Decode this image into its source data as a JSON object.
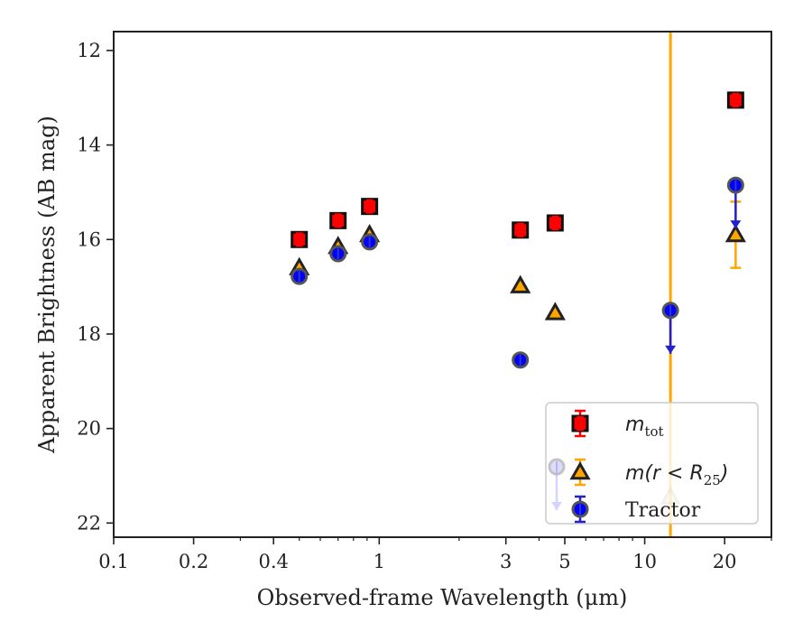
{
  "chart_data": {
    "type": "scatter",
    "xlabel": "Observed-frame Wavelength (μm)",
    "ylabel": "Apparent Brightness (AB mag)",
    "x_scale": "log",
    "xlim": [
      0.1,
      30
    ],
    "ylim": [
      22.3,
      11.6
    ],
    "y_inverted": true,
    "x_tick_labels": [
      "0.1",
      "0.2",
      "0.4",
      "1",
      "3",
      "5",
      "10",
      "20"
    ],
    "y_tick_labels": [
      "12",
      "14",
      "16",
      "18",
      "20",
      "22"
    ],
    "vertical_line": {
      "x": 12.5,
      "color": "#FFA500"
    },
    "legend_position": "lower right",
    "series": [
      {
        "name": "m_tot",
        "label_math": "m",
        "label_sub": "tot",
        "marker": "square",
        "color": "#FF0000",
        "points": [
          {
            "x": 0.5,
            "y": 16.0
          },
          {
            "x": 0.7,
            "y": 15.6
          },
          {
            "x": 0.92,
            "y": 15.3
          },
          {
            "x": 3.4,
            "y": 15.8
          },
          {
            "x": 4.6,
            "y": 15.65
          },
          {
            "x": 22.0,
            "y": 13.05
          }
        ]
      },
      {
        "name": "m(r < R25)",
        "label_math": "m(r < R",
        "label_sub": "25",
        "label_tail": ")",
        "marker": "triangle",
        "color": "#FFA500",
        "points": [
          {
            "x": 0.5,
            "y": 16.6
          },
          {
            "x": 0.7,
            "y": 16.15
          },
          {
            "x": 0.92,
            "y": 15.9
          },
          {
            "x": 3.4,
            "y": 16.98
          },
          {
            "x": 4.6,
            "y": 17.55
          },
          {
            "x": 12.5,
            "y": 21.45
          },
          {
            "x": 22.0,
            "y": 15.9,
            "err": 0.7
          }
        ]
      },
      {
        "name": "Tractor",
        "marker": "circle",
        "color": "#0000FF",
        "points": [
          {
            "x": 0.5,
            "y": 16.78
          },
          {
            "x": 0.7,
            "y": 16.3
          },
          {
            "x": 0.92,
            "y": 16.05
          },
          {
            "x": 3.4,
            "y": 18.55
          },
          {
            "x": 12.5,
            "y": 17.5,
            "upper_limit": true
          },
          {
            "x": 22.0,
            "y": 14.85,
            "upper_limit": true
          }
        ]
      }
    ]
  }
}
